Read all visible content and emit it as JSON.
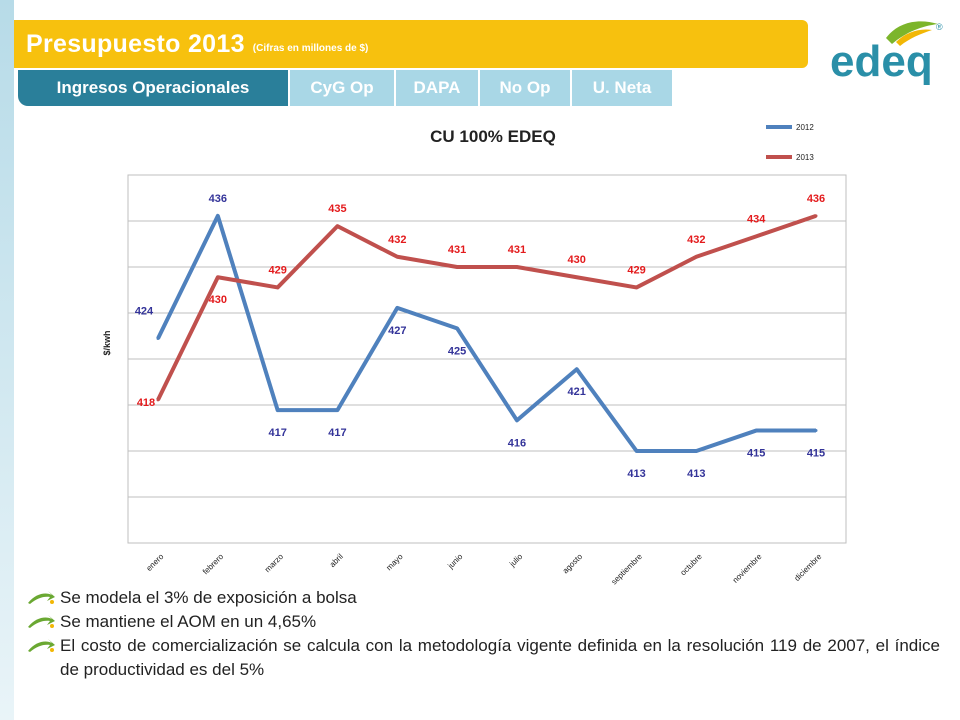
{
  "header": {
    "title": "Presupuesto 2013",
    "subtitle": "(Cifras en millones de $)"
  },
  "tabs": [
    {
      "label": "Ingresos Operacionales",
      "active": true
    },
    {
      "label": "CyG Op",
      "active": false
    },
    {
      "label": "DAPA",
      "active": false
    },
    {
      "label": "No Op",
      "active": false
    },
    {
      "label": "U. Neta",
      "active": false
    }
  ],
  "logo": {
    "text": "edeq",
    "mark": "®"
  },
  "chart_data": {
    "type": "line",
    "title": "CU 100% EDEQ",
    "ylabel": "$/kwh",
    "xlabel": "",
    "categories": [
      "enero",
      "febrero",
      "marzo",
      "abril",
      "mayo",
      "junio",
      "julio",
      "agosto",
      "septiembre",
      "octubre",
      "noviembre",
      "diciembre"
    ],
    "series": [
      {
        "name": "2012",
        "color": "#4f81bd",
        "label_color": "#333399",
        "values": [
          424,
          436,
          417,
          417,
          427,
          425,
          416,
          421,
          413,
          413,
          415,
          415
        ]
      },
      {
        "name": "2013",
        "color": "#c0504d",
        "label_color": "#e31a1c",
        "values": [
          418,
          430,
          429,
          435,
          432,
          431,
          431,
          430,
          429,
          432,
          434,
          436
        ]
      }
    ],
    "ylim": [
      404,
      440
    ],
    "grid": true,
    "legend": "top-right"
  },
  "bullets": [
    "Se modela el 3% de exposición a bolsa",
    "Se mantiene el AOM en un 4,65%",
    "El costo de comercialización se calcula con la metodología vigente definida en la resolución 119 de 2007, el índice de productividad es del 5%"
  ],
  "colors": {
    "title_bar": "#f7c10e",
    "tab_active": "#2a7f9a",
    "tab_inactive": "#a9d7e6",
    "logo": "#2a8fa8",
    "leaf": "#7cb52b"
  }
}
